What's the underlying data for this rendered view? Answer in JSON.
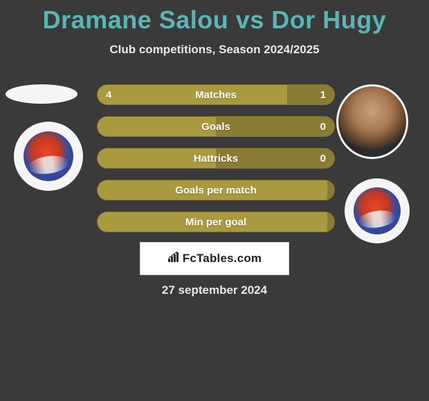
{
  "title": "Dramane Salou vs Dor Hugy",
  "subtitle": "Club competitions, Season 2024/2025",
  "date": "27 september 2024",
  "brand": "FcTables.com",
  "colors": {
    "background": "#3a3a3a",
    "title": "#5bb5b5",
    "subtitle": "#e8e8e8",
    "bar_primary": "#aa9a3f",
    "bar_secondary": "#8a7d33",
    "bar_text": "#ffffff",
    "logo_bg": "#ffffff"
  },
  "rows": [
    {
      "label": "Matches",
      "left": "4",
      "right": "1",
      "left_pct": 80,
      "right_pct": 20
    },
    {
      "label": "Goals",
      "left": "",
      "right": "0",
      "left_pct": 50,
      "right_pct": 50
    },
    {
      "label": "Hattricks",
      "left": "",
      "right": "0",
      "left_pct": 50,
      "right_pct": 50
    },
    {
      "label": "Goals per match",
      "left": "",
      "right": "",
      "left_pct": 97,
      "right_pct": 3
    },
    {
      "label": "Min per goal",
      "left": "",
      "right": "",
      "left_pct": 97,
      "right_pct": 3
    }
  ]
}
